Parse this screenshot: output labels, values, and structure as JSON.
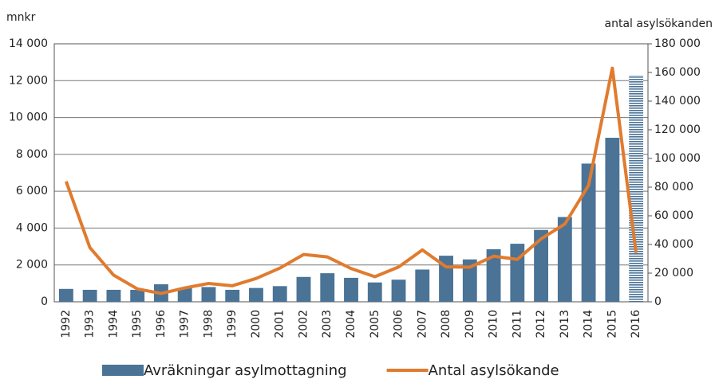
{
  "chart_data": {
    "type": "bar-line",
    "y_label": "mnkr",
    "y2_label": "antal asylsökanden",
    "categories": [
      "1992",
      "1993",
      "1994",
      "1995",
      "1996",
      "1997",
      "1998",
      "1999",
      "2000",
      "2001",
      "2002",
      "2003",
      "2004",
      "2005",
      "2006",
      "2007",
      "2008",
      "2009",
      "2010",
      "2011",
      "2012",
      "2013",
      "2014",
      "2015",
      "2016"
    ],
    "series": [
      {
        "name": "Avräkningar asylmottagning",
        "type": "bar",
        "color": "#4a7396",
        "values": [
          700,
          650,
          650,
          650,
          950,
          750,
          800,
          650,
          750,
          850,
          1350,
          1550,
          1300,
          1050,
          1200,
          1750,
          2500,
          2300,
          2850,
          3150,
          3900,
          4600,
          7500,
          8900,
          12300
        ]
      },
      {
        "name": "Antal asylsökande",
        "type": "line",
        "axis": "y2",
        "color": "#e07b2f",
        "values": [
          84000,
          37800,
          18600,
          9000,
          5800,
          9700,
          12800,
          11200,
          16300,
          23500,
          33000,
          31300,
          23200,
          17500,
          24300,
          36200,
          24400,
          24200,
          31800,
          29600,
          43900,
          54300,
          81300,
          163000,
          34000
        ]
      }
    ],
    "ylim": [
      0,
      14000
    ],
    "yticks": [
      0,
      {
        "value": 2000,
        "label": "2 000"
      },
      {
        "value": 4000,
        "label": "4 000"
      },
      {
        "value": 6000,
        "label": "6 000"
      },
      {
        "value": 8000,
        "label": "8 000"
      },
      {
        "value": 10000,
        "label": "10 000"
      },
      {
        "value": 12000,
        "label": "12 000"
      },
      {
        "value": 14000,
        "label": "14 000"
      }
    ],
    "y2lim": [
      0,
      180000
    ],
    "y2ticks": [
      0,
      {
        "value": 20000,
        "label": "20 000"
      },
      {
        "value": 40000,
        "label": "40 000"
      },
      {
        "value": 60000,
        "label": "60 000"
      },
      {
        "value": 80000,
        "label": "80 000"
      },
      {
        "value": 100000,
        "label": "100 000"
      },
      {
        "value": 120000,
        "label": "120 000"
      },
      {
        "value": 140000,
        "label": "140 000"
      },
      {
        "value": 160000,
        "label": "160 000"
      },
      {
        "value": 180000,
        "label": "180 000"
      }
    ],
    "grid": true
  }
}
